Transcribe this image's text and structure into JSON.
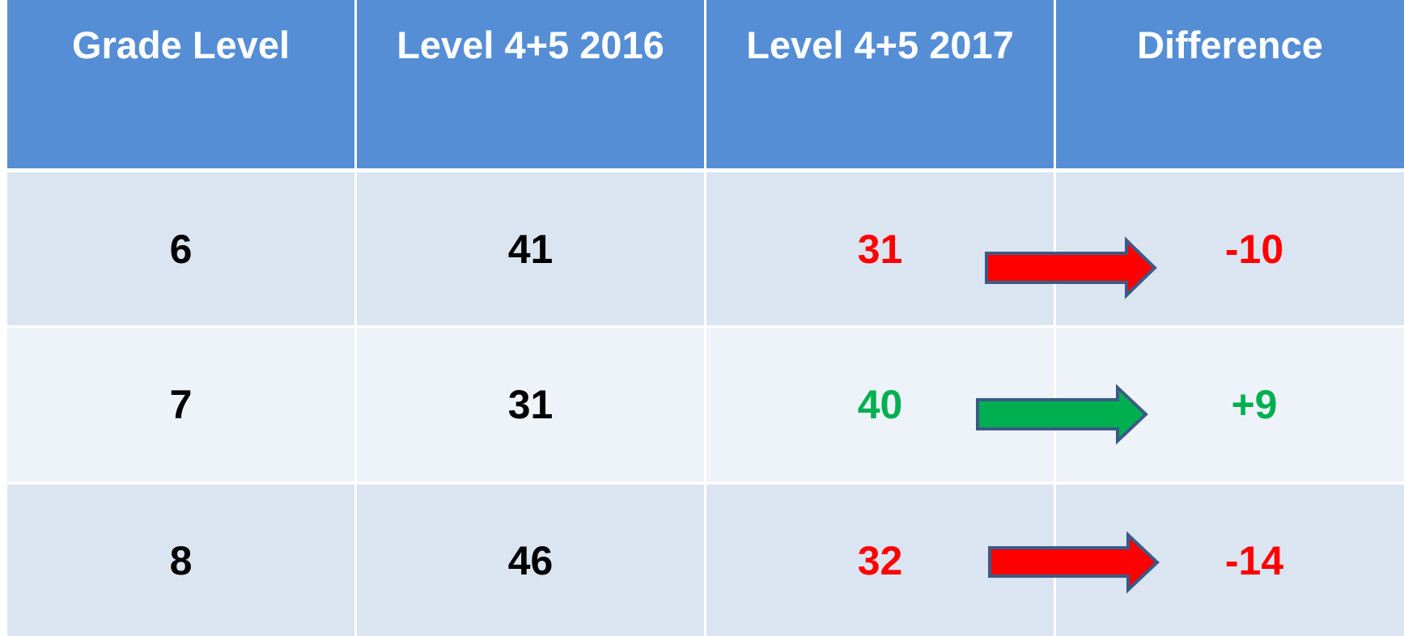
{
  "table": {
    "header": [
      "Grade Level",
      "Level 4+5 2016",
      "Level 4+5 2017",
      "Difference"
    ],
    "rows": [
      [
        "6",
        "41",
        "31",
        "-10"
      ],
      [
        "7",
        "31",
        "40",
        "+9"
      ],
      [
        "8",
        "46",
        "32",
        "-14"
      ]
    ]
  }
}
